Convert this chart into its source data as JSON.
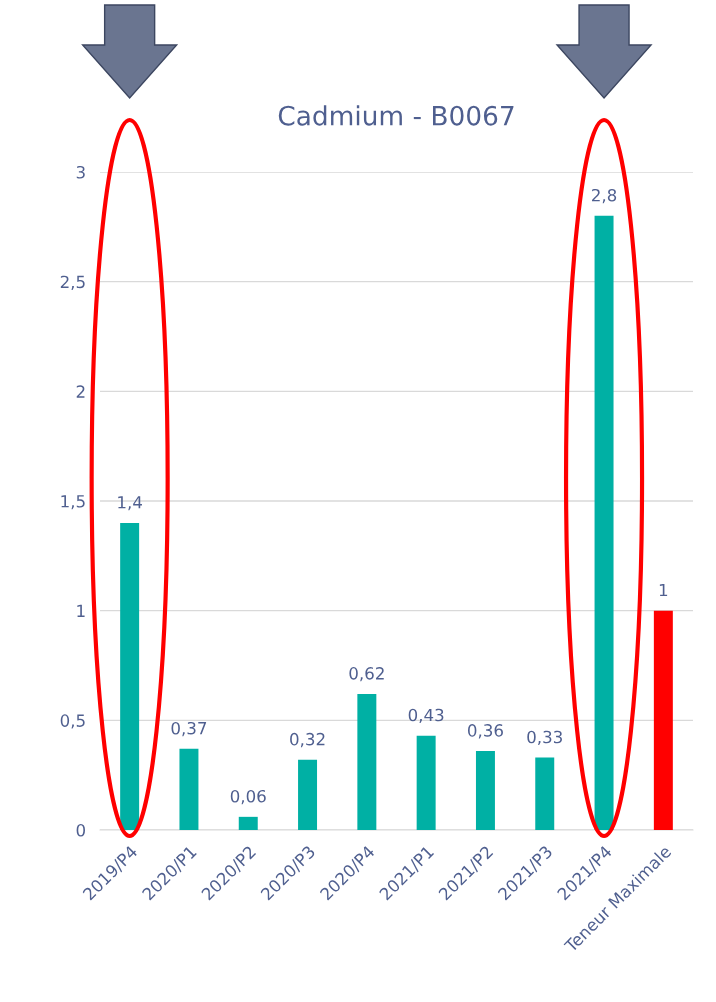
{
  "chart_data": {
    "type": "bar",
    "title": "Cadmium - B0067",
    "categories": [
      "2019/P4",
      "2020/P1",
      "2020/P2",
      "2020/P3",
      "2020/P4",
      "2021/P1",
      "2021/P2",
      "2021/P3",
      "2021/P4",
      "Teneur Maximale"
    ],
    "values": [
      1.4,
      0.37,
      0.06,
      0.32,
      0.62,
      0.43,
      0.36,
      0.33,
      2.8,
      1
    ],
    "colors": [
      "#00b0a4",
      "#00b0a4",
      "#00b0a4",
      "#00b0a4",
      "#00b0a4",
      "#00b0a4",
      "#00b0a4",
      "#00b0a4",
      "#00b0a4",
      "#ff0000"
    ],
    "value_labels": [
      "1,4",
      "0,37",
      "0,06",
      "0,32",
      "0,62",
      "0,43",
      "0,36",
      "0,33",
      "2,8",
      "1"
    ],
    "ylim": [
      0,
      3
    ],
    "yticks": [
      0,
      {
        "value": 0.5,
        "label": "0,5"
      },
      1,
      {
        "value": 1.5,
        "label": "1,5"
      },
      2,
      {
        "value": 2.5,
        "label": "2,5"
      },
      3
    ],
    "grid": "y"
  }
}
